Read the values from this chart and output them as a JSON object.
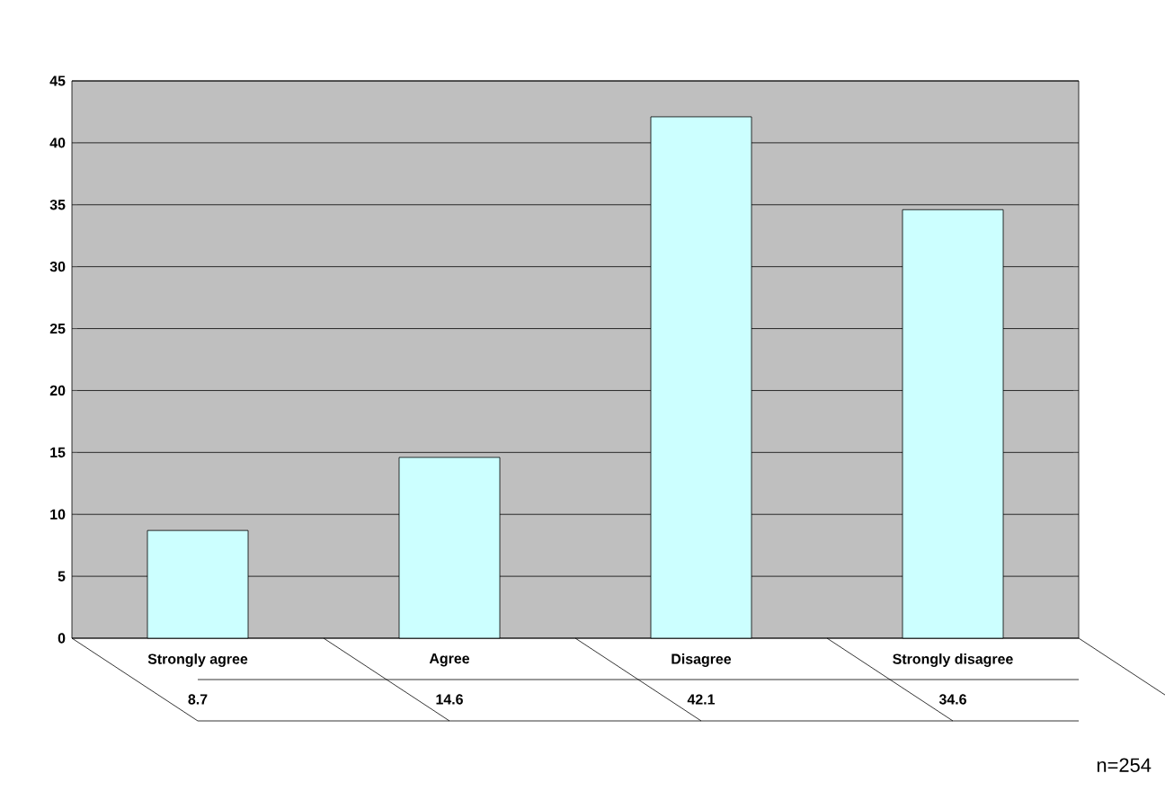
{
  "chart_data": {
    "type": "bar",
    "categories": [
      "Strongly agree",
      "Agree",
      "Disagree",
      "Strongly disagree"
    ],
    "values": [
      8.7,
      14.6,
      42.1,
      34.6
    ],
    "color": "#ccffff",
    "ylim": [
      0,
      45
    ],
    "yticks": [
      0,
      5,
      10,
      15,
      20,
      25,
      30,
      35,
      40,
      45
    ],
    "grid": "y",
    "data_labels": true,
    "annotations": [
      "n=254"
    ]
  }
}
